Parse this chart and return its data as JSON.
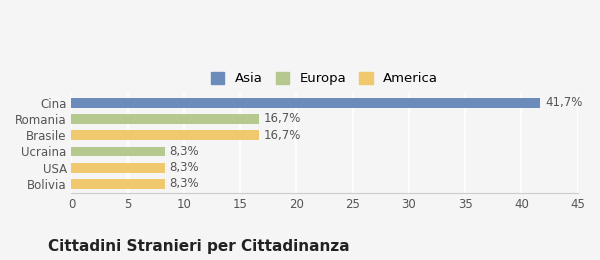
{
  "categories": [
    "Cina",
    "Romania",
    "Brasile",
    "Ucraina",
    "USA",
    "Bolivia"
  ],
  "values": [
    41.7,
    16.7,
    16.7,
    8.3,
    8.3,
    8.3
  ],
  "bar_colors": [
    "#6b8cba",
    "#b5c98e",
    "#f0c96e",
    "#b5c98e",
    "#f0c96e",
    "#f0c96e"
  ],
  "labels": [
    "41,7%",
    "16,7%",
    "16,7%",
    "8,3%",
    "8,3%",
    "8,3%"
  ],
  "legend": [
    {
      "label": "Asia",
      "color": "#6b8cba"
    },
    {
      "label": "Europa",
      "color": "#b5c98e"
    },
    {
      "label": "America",
      "color": "#f0c96e"
    }
  ],
  "xlim": [
    0,
    45
  ],
  "xticks": [
    0,
    5,
    10,
    15,
    20,
    25,
    30,
    35,
    40,
    45
  ],
  "title": "Cittadini Stranieri per Cittadinanza",
  "background_color": "#f5f5f5",
  "title_fontsize": 11,
  "subtitle_fontsize": 8.5,
  "label_fontsize": 8.5,
  "tick_fontsize": 8.5
}
